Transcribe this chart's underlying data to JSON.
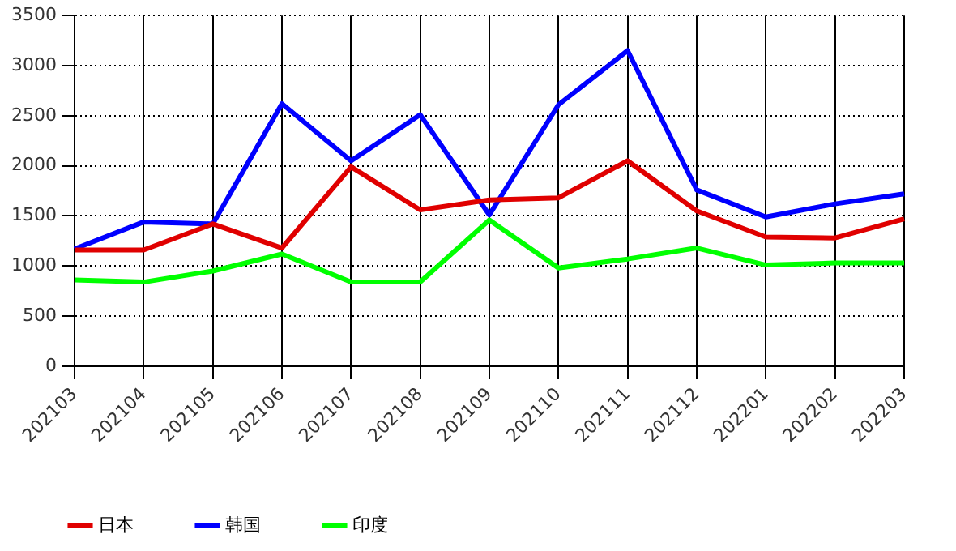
{
  "chart_data": {
    "type": "line",
    "categories": [
      "202103",
      "202104",
      "202105",
      "202106",
      "202107",
      "202108",
      "202109",
      "202110",
      "202111",
      "202112",
      "202201",
      "202202",
      "202203"
    ],
    "series": [
      {
        "name": "日本",
        "color": "#e00000",
        "values": [
          1160,
          1160,
          1420,
          1180,
          1990,
          1560,
          1660,
          1680,
          2050,
          1550,
          1290,
          1280,
          1470
        ]
      },
      {
        "name": "韩国",
        "color": "#0000ff",
        "values": [
          1170,
          1440,
          1420,
          2620,
          2050,
          2510,
          1510,
          2610,
          3150,
          1760,
          1490,
          1620,
          1720
        ]
      },
      {
        "name": "印度",
        "color": "#00ff00",
        "values": [
          860,
          840,
          950,
          1120,
          840,
          840,
          1460,
          980,
          1070,
          1180,
          1010,
          1030,
          1030
        ]
      }
    ],
    "ylim": [
      0,
      3500
    ],
    "yticks": [
      0,
      500,
      1000,
      1500,
      2000,
      2500,
      3000,
      3500
    ],
    "grid": true,
    "legend": "bottom left",
    "marker": "none",
    "line_style": "solid"
  }
}
